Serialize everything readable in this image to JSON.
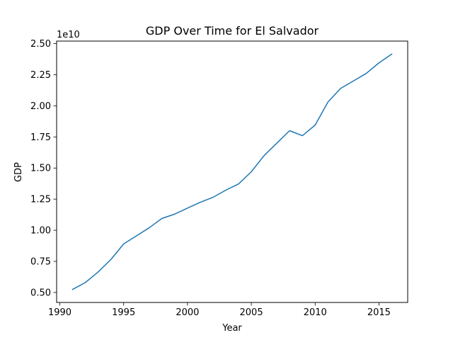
{
  "chart_data": {
    "type": "line",
    "title": "GDP Over Time for El Salvador",
    "xlabel": "Year",
    "ylabel": "GDP",
    "y_offset_label": "1e10",
    "xlim": [
      1989.75,
      2017.25
    ],
    "ylim": [
      4200000000.0,
      25200000000.0
    ],
    "x_ticks": [
      1990,
      1995,
      2000,
      2005,
      2010,
      2015
    ],
    "x_tick_labels": [
      "1990",
      "1995",
      "2000",
      "2005",
      "2010",
      "2015"
    ],
    "y_ticks": [
      5000000000.0,
      7500000000.0,
      10000000000.0,
      12500000000.0,
      15000000000.0,
      17500000000.0,
      20000000000.0,
      22500000000.0,
      25000000000.0
    ],
    "y_tick_labels": [
      "0.50",
      "0.75",
      "1.00",
      "1.25",
      "1.50",
      "1.75",
      "2.00",
      "2.25",
      "2.50"
    ],
    "grid": false,
    "series": [
      {
        "color": "#1f77b4",
        "x": [
          1991,
          1992,
          1993,
          1994,
          1995,
          1996,
          1997,
          1998,
          1999,
          2000,
          2001,
          2002,
          2003,
          2004,
          2005,
          2006,
          2007,
          2008,
          2009,
          2010,
          2011,
          2012,
          2013,
          2014,
          2015,
          2016
        ],
        "y": [
          5250000000.0,
          5800000000.0,
          6650000000.0,
          7650000000.0,
          8900000000.0,
          9550000000.0,
          10200000000.0,
          10950000000.0,
          11300000000.0,
          11780000000.0,
          12250000000.0,
          12650000000.0,
          13220000000.0,
          13720000000.0,
          14700000000.0,
          16000000000.0,
          17000000000.0,
          18000000000.0,
          17600000000.0,
          18450000000.0,
          20300000000.0,
          21400000000.0,
          22000000000.0,
          22600000000.0,
          23450000000.0,
          24150000000.0
        ]
      }
    ]
  }
}
